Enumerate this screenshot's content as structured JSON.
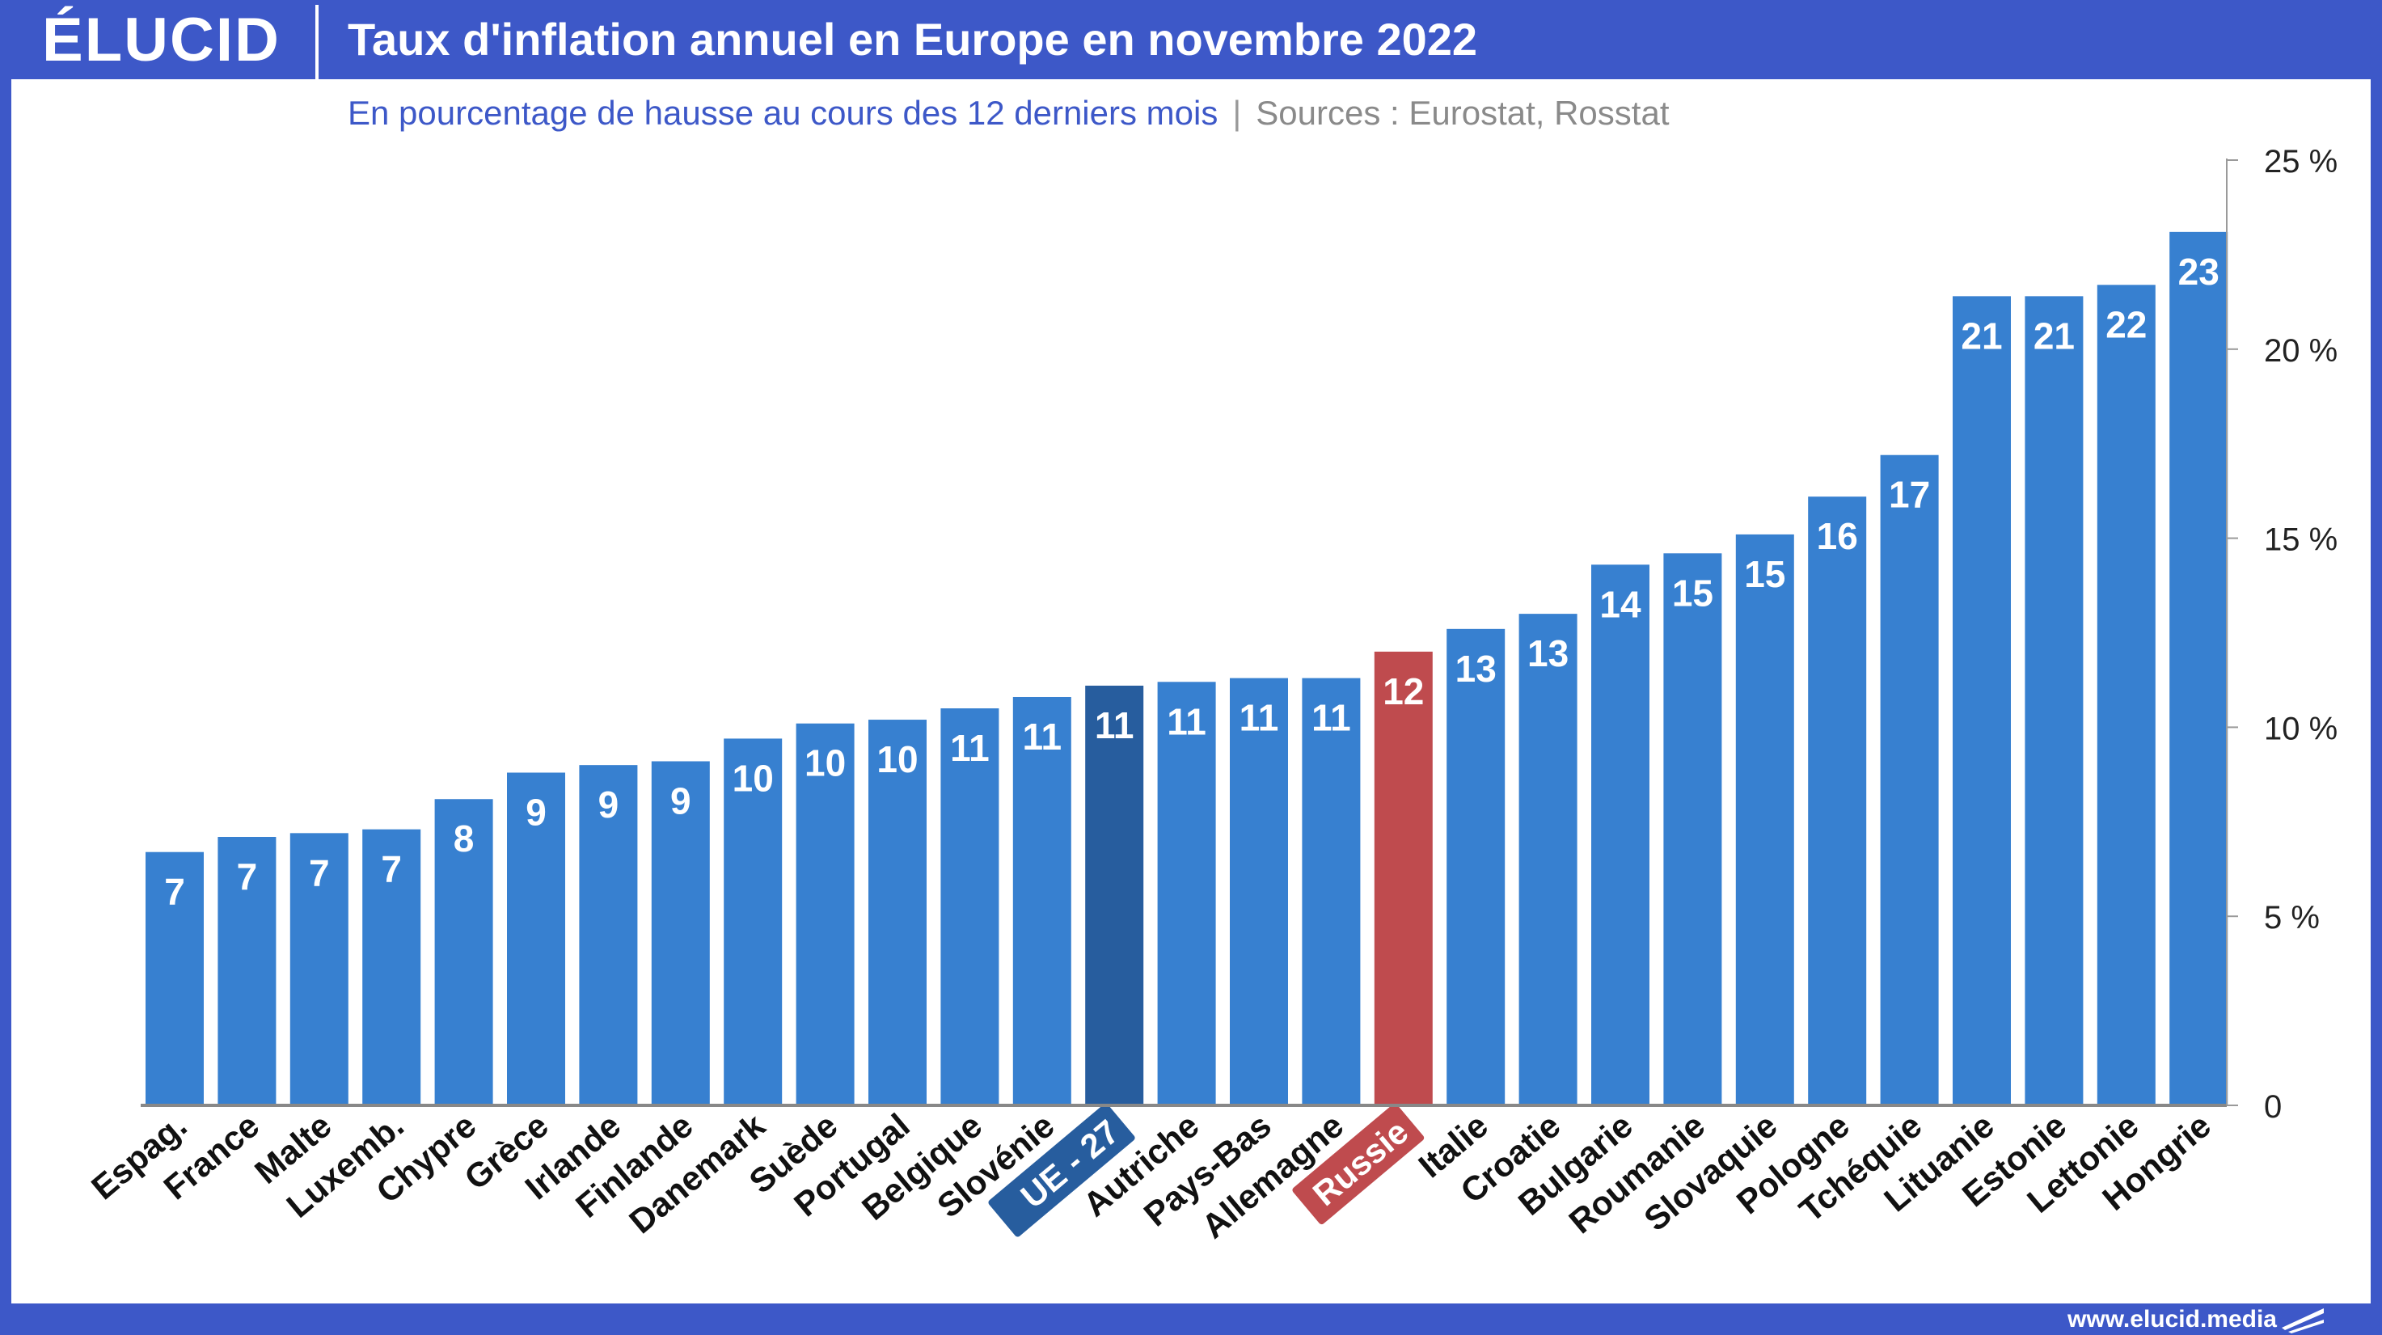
{
  "header": {
    "logo_text": "ÉLUCID",
    "title": "Taux d'inflation annuel en Europe en novembre 2022"
  },
  "subtitle": {
    "text": "En pourcentage de hausse au cours des 12 derniers mois",
    "separator": "|",
    "sources": "Sources : Eurostat, Rosstat"
  },
  "footer": {
    "url": "www.elucid.media"
  },
  "colors": {
    "brand": "#3D58C8",
    "bar": "#3780D0",
    "highlight_eu": "#275D9E",
    "highlight_russia": "#BF4B4E"
  },
  "chart_data": {
    "type": "bar",
    "categories": [
      "Espag.",
      "France",
      "Malte",
      "Luxemb.",
      "Chypre",
      "Grèce",
      "Irlande",
      "Finlande",
      "Danemark",
      "Suède",
      "Portugal",
      "Belgique",
      "Slovénie",
      "UE - 27",
      "Autriche",
      "Pays-Bas",
      "Allemagne",
      "Russie",
      "Italie",
      "Croatie",
      "Bulgarie",
      "Roumanie",
      "Slovaquie",
      "Pologne",
      "Tchéquie",
      "Lituanie",
      "Estonie",
      "Lettonie",
      "Hongrie"
    ],
    "values": [
      6.7,
      7.1,
      7.2,
      7.3,
      8.1,
      8.8,
      9.0,
      9.1,
      9.7,
      10.1,
      10.2,
      10.5,
      10.8,
      11.1,
      11.2,
      11.3,
      11.3,
      12.0,
      12.6,
      13.0,
      14.3,
      14.6,
      15.1,
      16.1,
      17.2,
      21.4,
      21.4,
      21.7,
      23.1
    ],
    "data_labels": [
      "7",
      "7",
      "7",
      "7",
      "8",
      "9",
      "9",
      "9",
      "10",
      "10",
      "10",
      "11",
      "11",
      "11",
      "11",
      "11",
      "11",
      "12",
      "13",
      "13",
      "14",
      "15",
      "15",
      "16",
      "17",
      "21",
      "21",
      "22",
      "23"
    ],
    "highlights": {
      "UE - 27": "#275D9E",
      "Russie": "#BF4B4E"
    },
    "ylim": [
      0,
      25
    ],
    "y_ticks": [
      0,
      5,
      10,
      15,
      20,
      25
    ],
    "y_tick_labels": [
      "0",
      "5 %",
      "10 %",
      "15 %",
      "20 %",
      "25 %"
    ],
    "y_axis_side": "right",
    "grid": false,
    "legend": "none"
  }
}
